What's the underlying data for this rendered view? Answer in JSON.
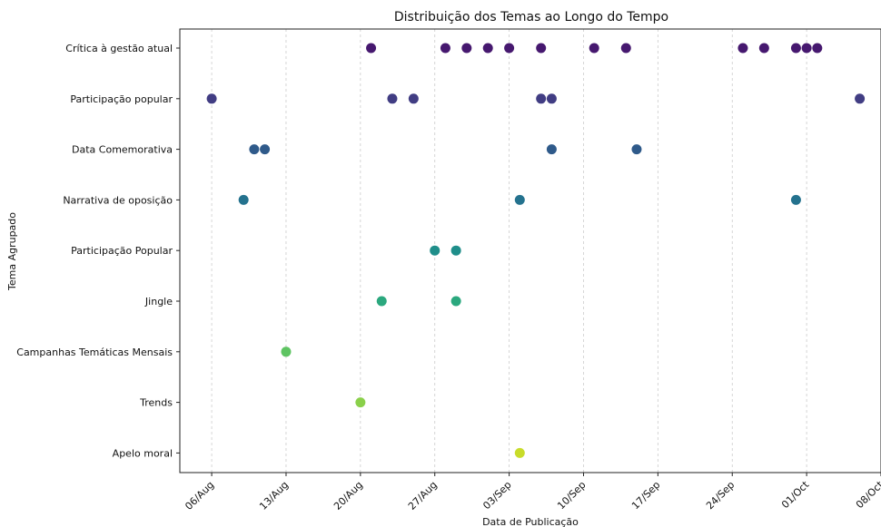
{
  "chart_data": {
    "type": "scatter",
    "title": "Distribuição dos Temas ao Longo do Tempo",
    "xlabel": "Data de Publicação",
    "ylabel": "Tema Agrupado",
    "xlim": [
      "2024-08-03",
      "2024-10-08"
    ],
    "x_ticks": [
      {
        "date": "2024-08-06",
        "label": "06/Aug"
      },
      {
        "date": "2024-08-13",
        "label": "13/Aug"
      },
      {
        "date": "2024-08-20",
        "label": "20/Aug"
      },
      {
        "date": "2024-08-27",
        "label": "27/Aug"
      },
      {
        "date": "2024-09-03",
        "label": "03/Sep"
      },
      {
        "date": "2024-09-10",
        "label": "10/Sep"
      },
      {
        "date": "2024-09-17",
        "label": "17/Sep"
      },
      {
        "date": "2024-09-24",
        "label": "24/Sep"
      },
      {
        "date": "2024-10-01",
        "label": "01/Oct"
      },
      {
        "date": "2024-10-08",
        "label": "08/Oct"
      }
    ],
    "grid": "x-dashed",
    "categories": [
      "Crítica à gestão atual",
      "Participação popular",
      "Data Comemorativa",
      "Narrativa de oposição",
      "Participação Popular",
      "Jingle",
      "Campanhas Temáticas Mensais",
      "Trends",
      "Apelo moral"
    ],
    "series": [
      {
        "category": "Crítica à gestão atual",
        "color": "#46186f",
        "x": [
          "2024-08-21",
          "2024-08-28",
          "2024-08-30",
          "2024-09-01",
          "2024-09-03",
          "2024-09-06",
          "2024-09-11",
          "2024-09-14",
          "2024-09-25",
          "2024-09-27",
          "2024-09-30",
          "2024-10-01",
          "2024-10-02"
        ]
      },
      {
        "category": "Participação popular",
        "color": "#413d83",
        "x": [
          "2024-08-06",
          "2024-08-23",
          "2024-08-25",
          "2024-09-06",
          "2024-09-07",
          "2024-10-06"
        ]
      },
      {
        "category": "Data Comemorativa",
        "color": "#2f5a8a",
        "x": [
          "2024-08-10",
          "2024-08-11",
          "2024-09-07",
          "2024-09-15"
        ]
      },
      {
        "category": "Narrativa de oposição",
        "color": "#24728e",
        "x": [
          "2024-08-09",
          "2024-09-04",
          "2024-09-30"
        ]
      },
      {
        "category": "Participação Popular",
        "color": "#1f8e8a",
        "x": [
          "2024-08-27",
          "2024-08-29"
        ]
      },
      {
        "category": "Jingle",
        "color": "#2ba87e",
        "x": [
          "2024-08-22",
          "2024-08-29"
        ]
      },
      {
        "category": "Campanhas Temáticas Mensais",
        "color": "#5ec462",
        "x": [
          "2024-08-13"
        ]
      },
      {
        "category": "Trends",
        "color": "#8ad04a",
        "x": [
          "2024-08-20"
        ]
      },
      {
        "category": "Apelo moral",
        "color": "#c8dc2a",
        "x": [
          "2024-09-04"
        ]
      }
    ]
  }
}
